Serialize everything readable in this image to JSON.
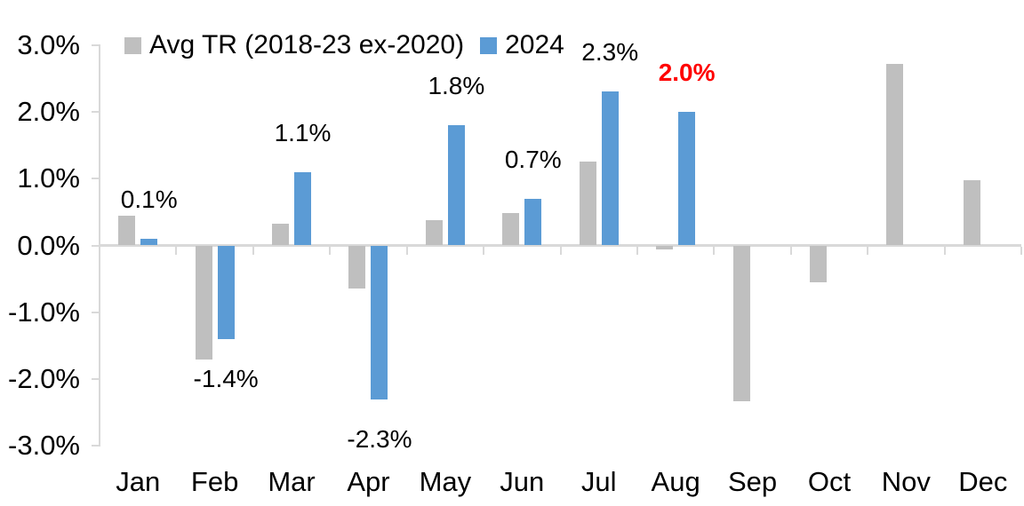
{
  "legend": {
    "items": [
      {
        "label": "Avg TR (2018-23 ex-2020)",
        "color": "#bfbfbf"
      },
      {
        "label": "2024",
        "color": "#5b9bd5"
      }
    ]
  },
  "colors": {
    "series_avg": "#bfbfbf",
    "series_2024": "#5b9bd5",
    "axis_line": "#d9d9d9",
    "text": "#000000",
    "highlight_red": "#ff0000"
  },
  "chart_data": {
    "type": "bar",
    "title": "",
    "xlabel": "",
    "ylabel": "",
    "categories": [
      "Jan",
      "Feb",
      "Mar",
      "Apr",
      "May",
      "Jun",
      "Jul",
      "Aug",
      "Sep",
      "Oct",
      "Nov",
      "Dec"
    ],
    "series": [
      {
        "name": "Avg TR (2018-23 ex-2020)",
        "color": "#bfbfbf",
        "values": [
          0.45,
          -1.7,
          0.33,
          -0.65,
          0.38,
          0.48,
          1.26,
          -0.06,
          -2.33,
          -0.55,
          2.72,
          0.97
        ]
      },
      {
        "name": "2024",
        "color": "#5b9bd5",
        "values": [
          0.1,
          -1.4,
          1.1,
          -2.3,
          1.8,
          0.7,
          2.3,
          2.0,
          null,
          null,
          null,
          null
        ]
      }
    ],
    "data_labels": [
      {
        "category": "Jan",
        "text": "0.1%",
        "color": "#000000",
        "bold": false
      },
      {
        "category": "Feb",
        "text": "-1.4%",
        "color": "#000000",
        "bold": false
      },
      {
        "category": "Mar",
        "text": "1.1%",
        "color": "#000000",
        "bold": false
      },
      {
        "category": "Apr",
        "text": "-2.3%",
        "color": "#000000",
        "bold": false
      },
      {
        "category": "May",
        "text": "1.8%",
        "color": "#000000",
        "bold": false
      },
      {
        "category": "Jun",
        "text": "0.7%",
        "color": "#000000",
        "bold": false
      },
      {
        "category": "Jul",
        "text": "2.3%",
        "color": "#000000",
        "bold": false
      },
      {
        "category": "Aug",
        "text": "2.0%",
        "color": "#ff0000",
        "bold": true
      }
    ],
    "y_axis": {
      "tick_labels": [
        "3.0%",
        "2.0%",
        "1.0%",
        "0.0%",
        "-1.0%",
        "-2.0%",
        "-3.0%"
      ],
      "tick_values": [
        3,
        2,
        1,
        0,
        -1,
        -2,
        -3
      ],
      "min": -3,
      "max": 3,
      "unit": "%"
    },
    "grid": false,
    "legend_position": "top"
  }
}
